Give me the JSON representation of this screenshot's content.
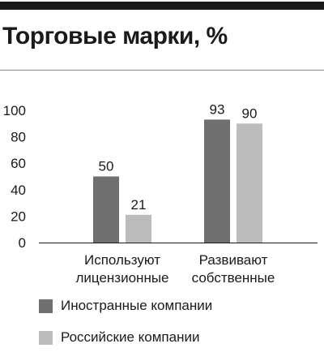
{
  "colors": {
    "foreign": "#6f6f6f",
    "russian": "#bcbcbc",
    "axis": "#1a1a1a"
  },
  "chart_data": {
    "type": "bar",
    "title": "Торговые марки, %",
    "categories": [
      [
        "Используют",
        "лицензионные"
      ],
      [
        "Развивают",
        "собственные"
      ]
    ],
    "series": [
      {
        "name": "Иностранные компании",
        "values": [
          50,
          93
        ]
      },
      {
        "name": "Российские компании",
        "values": [
          21,
          90
        ]
      }
    ],
    "ylim": [
      0,
      100
    ],
    "yticks": [
      0,
      20,
      40,
      60,
      80,
      100
    ],
    "xlabel": "",
    "ylabel": "",
    "grid": false,
    "legend": "bottom-left"
  }
}
